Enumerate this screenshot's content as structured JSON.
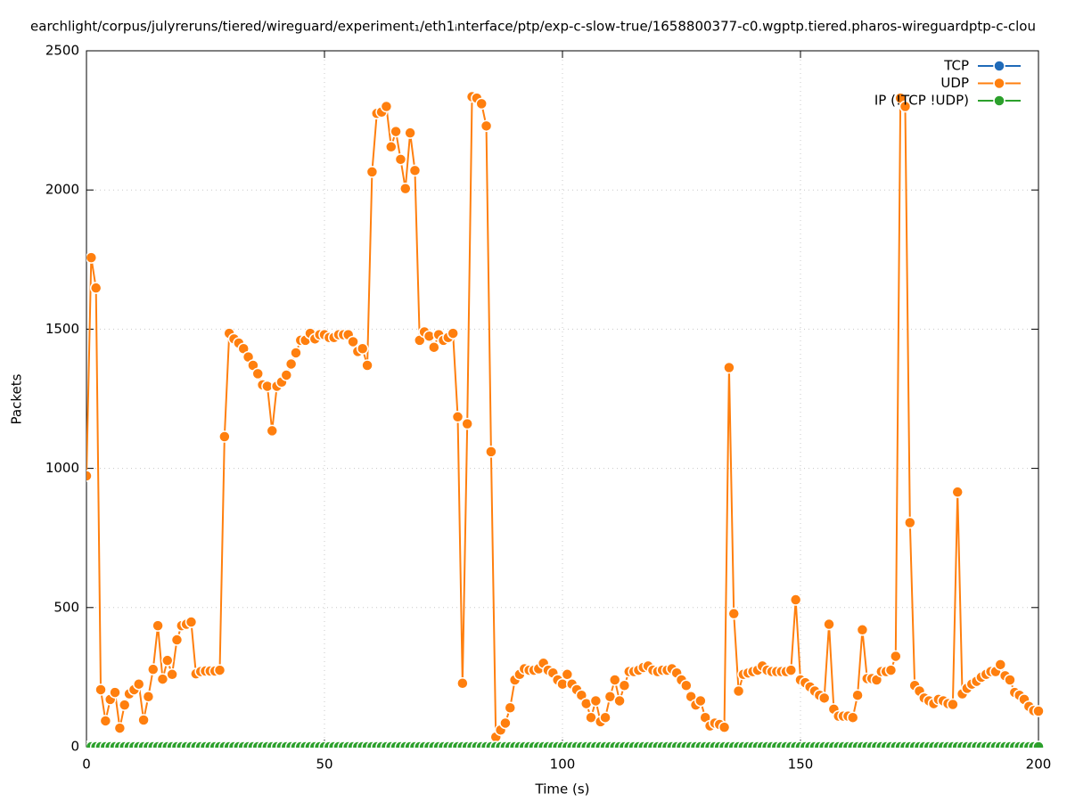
{
  "chart_data": {
    "type": "line",
    "title": "earchlight/corpus/julyreruns/tiered/wireguard/experiment₁/eth1ᵢnterface/ptp/exp-c-slow-true/1658800377-c0.wgptp.tiered.pharos-wireguardptp-c-clou",
    "xlabel": "Time (s)",
    "ylabel": "Packets",
    "xlim": [
      0,
      200
    ],
    "xticks": [
      0,
      50,
      100,
      150,
      200
    ],
    "ylim": [
      0,
      2500
    ],
    "yticks": [
      0,
      500,
      1000,
      1500,
      2000,
      2500
    ],
    "grid": true,
    "legend": "top right",
    "x": [
      0,
      1,
      2,
      3,
      4,
      5,
      6,
      7,
      8,
      9,
      10,
      11,
      12,
      13,
      14,
      15,
      16,
      17,
      18,
      19,
      20,
      21,
      22,
      23,
      24,
      25,
      26,
      27,
      28,
      29,
      30,
      31,
      32,
      33,
      34,
      35,
      36,
      37,
      38,
      39,
      40,
      41,
      42,
      43,
      44,
      45,
      46,
      47,
      48,
      49,
      50,
      51,
      52,
      53,
      54,
      55,
      56,
      57,
      58,
      59,
      60,
      61,
      62,
      63,
      64,
      65,
      66,
      67,
      68,
      69,
      70,
      71,
      72,
      73,
      74,
      75,
      76,
      77,
      78,
      79,
      80,
      81,
      82,
      83,
      84,
      85,
      86,
      87,
      88,
      89,
      90,
      91,
      92,
      93,
      94,
      95,
      96,
      97,
      98,
      99,
      100,
      101,
      102,
      103,
      104,
      105,
      106,
      107,
      108,
      109,
      110,
      111,
      112,
      113,
      114,
      115,
      116,
      117,
      118,
      119,
      120,
      121,
      122,
      123,
      124,
      125,
      126,
      127,
      128,
      129,
      130,
      131,
      132,
      133,
      134,
      135,
      136,
      137,
      138,
      139,
      140,
      141,
      142,
      143,
      144,
      145,
      146,
      147,
      148,
      149,
      150,
      151,
      152,
      153,
      154,
      155,
      156,
      157,
      158,
      159,
      160,
      161,
      162,
      163,
      164,
      165,
      166,
      167,
      168,
      169,
      170,
      171,
      172,
      173,
      174,
      175,
      176,
      177,
      178,
      179,
      180,
      181,
      182,
      183,
      184,
      185,
      186,
      187,
      188,
      189,
      190,
      191,
      192,
      193,
      194,
      195,
      196,
      197,
      198,
      199,
      200
    ],
    "series": [
      {
        "name": "TCP",
        "color": "#1f6ab8",
        "values": [
          0,
          0,
          0,
          0,
          0,
          0,
          0,
          0,
          0,
          0,
          0,
          0,
          0,
          0,
          0,
          0,
          0,
          0,
          0,
          0,
          0,
          0,
          0,
          0,
          0,
          0,
          0,
          0,
          0,
          0,
          0,
          0,
          0,
          0,
          0,
          0,
          0,
          0,
          0,
          0,
          0,
          0,
          0,
          0,
          0,
          0,
          0,
          0,
          0,
          0,
          0,
          0,
          0,
          0,
          0,
          0,
          0,
          0,
          0,
          0,
          0,
          0,
          0,
          0,
          0,
          0,
          0,
          0,
          0,
          0,
          0,
          0,
          0,
          0,
          0,
          0,
          0,
          0,
          0,
          0,
          0,
          0,
          0,
          0,
          0,
          0,
          0,
          0,
          0,
          0,
          0,
          0,
          0,
          0,
          0,
          0,
          0,
          0,
          0,
          0,
          0,
          0,
          0,
          0,
          0,
          0,
          0,
          0,
          0,
          0,
          0,
          0,
          0,
          0,
          0,
          0,
          0,
          0,
          0,
          0,
          0,
          0,
          0,
          0,
          0,
          0,
          0,
          0,
          0,
          0,
          0,
          0,
          0,
          0,
          0,
          0,
          0,
          0,
          0,
          0,
          0,
          0,
          0,
          0,
          0,
          0,
          0,
          0,
          0,
          0,
          0,
          0,
          0,
          0,
          0,
          0,
          0,
          0,
          0,
          0,
          0,
          0,
          0,
          0,
          0,
          0,
          0,
          0,
          0,
          0,
          0,
          0,
          0,
          0,
          0,
          0,
          0,
          0,
          0,
          0,
          0,
          0,
          0,
          0,
          0,
          0,
          0,
          0,
          0,
          0,
          0,
          0,
          0,
          0,
          0,
          0,
          0,
          0,
          0,
          0,
          0
        ]
      },
      {
        "name": "UDP",
        "color": "#ff7f0e",
        "values": [
          973,
          1757,
          1648,
          205,
          93,
          170,
          195,
          67,
          150,
          190,
          205,
          225,
          96,
          180,
          278,
          435,
          243,
          310,
          260,
          384,
          435,
          440,
          448,
          262,
          270,
          272,
          272,
          272,
          275,
          1114,
          1485,
          1465,
          1450,
          1430,
          1400,
          1370,
          1340,
          1300,
          1295,
          1135,
          1295,
          1310,
          1335,
          1375,
          1415,
          1460,
          1460,
          1485,
          1465,
          1480,
          1480,
          1470,
          1470,
          1480,
          1480,
          1480,
          1455,
          1420,
          1430,
          1370,
          2065,
          2275,
          2280,
          2300,
          2155,
          2210,
          2110,
          2005,
          2205,
          2070,
          1460,
          1490,
          1475,
          1435,
          1480,
          1460,
          1470,
          1485,
          1185,
          228,
          1160,
          2335,
          2330,
          2310,
          2230,
          1060,
          35,
          60,
          85,
          140,
          240,
          260,
          280,
          275,
          275,
          280,
          300,
          275,
          265,
          240,
          225,
          260,
          225,
          205,
          185,
          155,
          105,
          165,
          90,
          105,
          180,
          240,
          165,
          220,
          270,
          270,
          275,
          285,
          290,
          275,
          270,
          275,
          275,
          280,
          265,
          240,
          220,
          180,
          150,
          165,
          105,
          75,
          85,
          80,
          70,
          1362,
          478,
          200,
          260,
          265,
          270,
          275,
          290,
          275,
          270,
          270,
          270,
          270,
          275,
          528,
          240,
          230,
          215,
          200,
          185,
          175,
          440,
          135,
          110,
          110,
          110,
          105,
          185,
          420,
          245,
          245,
          240,
          270,
          270,
          275,
          325,
          2330,
          2300,
          805,
          220,
          200,
          175,
          165,
          155,
          170,
          165,
          155,
          152,
          915,
          190,
          210,
          225,
          235,
          250,
          260,
          270,
          270,
          295,
          255,
          240,
          195,
          185,
          170,
          145,
          130,
          128
        ]
      },
      {
        "name": "IP (!TCP  !UDP)",
        "color": "#2ca02c",
        "values": [
          0,
          0,
          0,
          0,
          0,
          0,
          0,
          0,
          0,
          0,
          0,
          0,
          0,
          0,
          0,
          0,
          0,
          0,
          0,
          0,
          0,
          0,
          0,
          0,
          0,
          0,
          0,
          0,
          0,
          0,
          0,
          0,
          0,
          0,
          0,
          0,
          0,
          0,
          0,
          0,
          0,
          0,
          0,
          0,
          0,
          0,
          0,
          0,
          0,
          0,
          0,
          0,
          0,
          0,
          0,
          0,
          0,
          0,
          0,
          0,
          0,
          0,
          0,
          0,
          0,
          0,
          0,
          0,
          0,
          0,
          0,
          0,
          0,
          0,
          0,
          0,
          0,
          0,
          0,
          0,
          0,
          0,
          0,
          0,
          0,
          0,
          0,
          0,
          0,
          0,
          0,
          0,
          0,
          0,
          0,
          0,
          0,
          0,
          0,
          0,
          0,
          0,
          0,
          0,
          0,
          0,
          0,
          0,
          0,
          0,
          0,
          0,
          0,
          0,
          0,
          0,
          0,
          0,
          0,
          0,
          0,
          0,
          0,
          0,
          0,
          0,
          0,
          0,
          0,
          0,
          0,
          0,
          0,
          0,
          0,
          0,
          0,
          0,
          0,
          0,
          0,
          0,
          0,
          0,
          0,
          0,
          0,
          0,
          0,
          0,
          0,
          0,
          0,
          0,
          0,
          0,
          0,
          0,
          0,
          0,
          0,
          0,
          0,
          0,
          0,
          0,
          0,
          0,
          0,
          0,
          0,
          0,
          0,
          0,
          0,
          0,
          0,
          0,
          0,
          0,
          0,
          0,
          0,
          0,
          0,
          0,
          0,
          0,
          0,
          0,
          0,
          0,
          0,
          0,
          0,
          0,
          0,
          0,
          0,
          0,
          0
        ]
      }
    ]
  }
}
